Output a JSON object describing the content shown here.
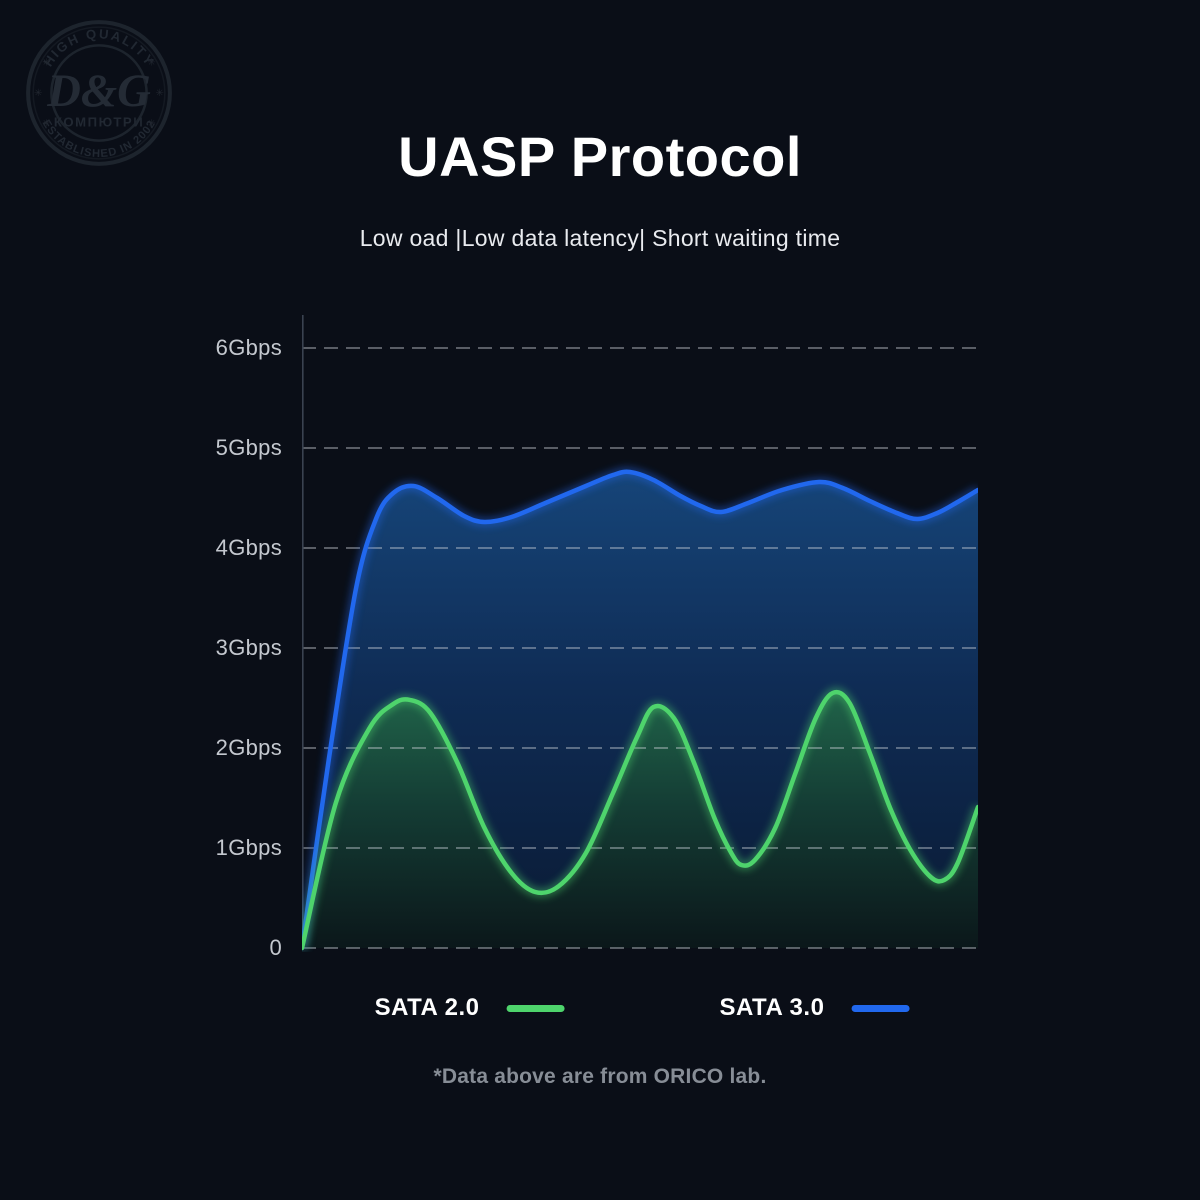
{
  "page": {
    "background": "#0a0e17",
    "title": "UASP Protocol",
    "subtitle": "Low oad |Low data latency| Short waiting time",
    "footnote": "*Data above are from ORICO lab."
  },
  "watermark": {
    "top_arc": "HIGH QUALITY",
    "center": "D&G",
    "sub_center": "КОМПЮТРИ",
    "bottom_arc": "ESTABLISHED IN 2002",
    "decor_glyph": "✳"
  },
  "chart_data": {
    "type": "area",
    "title": "UASP Protocol",
    "xlabel": "",
    "ylabel": "Gbps",
    "ylim": [
      0,
      6.33
    ],
    "x_range": [
      0,
      100
    ],
    "grid": "horizontal-dashed",
    "gridline_color": "#cdd2d9",
    "axis_color": "#3a4250",
    "legend_position": "bottom",
    "ylabel_ticks": [
      "6Gbps",
      "5Gbps",
      "4Gbps",
      "3Gbps",
      "2Gbps",
      "1Gbps",
      "0"
    ],
    "ytick_values": [
      6,
      5,
      4,
      3,
      2,
      1,
      0
    ],
    "series": [
      {
        "name": "SATA 2.0",
        "color": "#4ed46c",
        "fill_top": "#206349",
        "fill_mid": "#143c34",
        "fill_bottom": "#0b171a",
        "points": [
          [
            0,
            0
          ],
          [
            5,
            1.45
          ],
          [
            10,
            2.2
          ],
          [
            13.5,
            2.44
          ],
          [
            16,
            2.48
          ],
          [
            19,
            2.35
          ],
          [
            23,
            1.85
          ],
          [
            27,
            1.2
          ],
          [
            31,
            0.75
          ],
          [
            34.5,
            0.56
          ],
          [
            38,
            0.62
          ],
          [
            42,
            0.95
          ],
          [
            46,
            1.55
          ],
          [
            49.5,
            2.1
          ],
          [
            52,
            2.41
          ],
          [
            55,
            2.3
          ],
          [
            58,
            1.85
          ],
          [
            61,
            1.3
          ],
          [
            63.5,
            0.95
          ],
          [
            65,
            0.83
          ],
          [
            67,
            0.88
          ],
          [
            70,
            1.2
          ],
          [
            73,
            1.75
          ],
          [
            76,
            2.3
          ],
          [
            78.5,
            2.55
          ],
          [
            81,
            2.45
          ],
          [
            84,
            1.95
          ],
          [
            87,
            1.4
          ],
          [
            90,
            0.98
          ],
          [
            93,
            0.71
          ],
          [
            95,
            0.68
          ],
          [
            97,
            0.85
          ],
          [
            100,
            1.41
          ]
        ]
      },
      {
        "name": "SATA 3.0",
        "color": "#2168ee",
        "fill_top": "#164579",
        "fill_mid": "#0f2c55",
        "fill_bottom": "#0a1a33",
        "points": [
          [
            0,
            0
          ],
          [
            4,
            1.9
          ],
          [
            8,
            3.6
          ],
          [
            11,
            4.3
          ],
          [
            13.5,
            4.55
          ],
          [
            16.5,
            4.62
          ],
          [
            20,
            4.5
          ],
          [
            24,
            4.32
          ],
          [
            27,
            4.26
          ],
          [
            31,
            4.31
          ],
          [
            36,
            4.45
          ],
          [
            42,
            4.62
          ],
          [
            46,
            4.73
          ],
          [
            48.5,
            4.76
          ],
          [
            52,
            4.68
          ],
          [
            56,
            4.52
          ],
          [
            59,
            4.42
          ],
          [
            62,
            4.36
          ],
          [
            66,
            4.45
          ],
          [
            71,
            4.58
          ],
          [
            76.5,
            4.66
          ],
          [
            80,
            4.6
          ],
          [
            84,
            4.47
          ],
          [
            88,
            4.35
          ],
          [
            91,
            4.29
          ],
          [
            94,
            4.35
          ],
          [
            97,
            4.46
          ],
          [
            100,
            4.58
          ]
        ]
      }
    ]
  }
}
